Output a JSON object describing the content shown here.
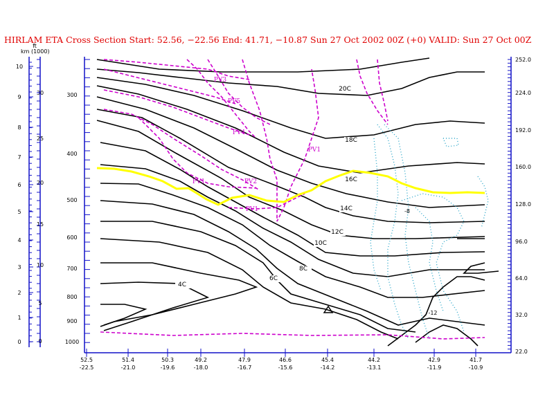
{
  "title": "HIRLAM ETA Cross Section Start:  52.56, −22.56 End:  41.71, −10.87 Sun 27 Oct 2002 00Z  (+0) VALID: Sun 27 Oct 00Z",
  "colors": {
    "title": "#e00000",
    "axis_blue": "#1010c8",
    "isotherm": "#000000",
    "pv": "#cc00cc",
    "tropopause": "#ffff00",
    "humidity": "#2aa6c8"
  },
  "chart_data": {
    "type": "cross-section",
    "left_axis": {
      "unit_km": "km",
      "unit_ft": "ft",
      "unit_ft_scale": "(1000)",
      "km_ticks": [
        "10",
        "9",
        "8",
        "7",
        "6",
        "5",
        "4",
        "3",
        "2",
        "1",
        "0"
      ],
      "ft_ticks": [
        "30",
        "25",
        "20",
        "15",
        "10",
        "5",
        "0"
      ],
      "pressure_ticks": [
        "300",
        "400",
        "500",
        "600",
        "700",
        "800",
        "900",
        "1000"
      ]
    },
    "right_axis": {
      "ticks": [
        "252.0",
        "224.0",
        "192.0",
        "160.0",
        "128.0",
        "96.0",
        "64.0",
        "32.0",
        "22.0"
      ]
    },
    "x_axis": {
      "lat_ticks": [
        "52.5",
        "51.4",
        "50.3",
        "49.2",
        "47.9",
        "46.6",
        "45.4",
        "44.2",
        "42.9",
        "41.7"
      ],
      "lon_ticks": [
        "-22.5",
        "-21.0",
        "-19.6",
        "-18.0",
        "-16.7",
        "-15.6",
        "-14.2",
        "-13.1",
        "-11.9",
        "-10.9"
      ]
    },
    "isotherm_labels": [
      "20C",
      "18C",
      "16C",
      "14C",
      "12C",
      "10C",
      "8C",
      "6C",
      "4C"
    ],
    "pv_labels": [
      "PV3",
      "PV5",
      "PV4",
      "PV1",
      "PV1",
      "PV2",
      "PV1"
    ],
    "humidity_labels": [
      "-8",
      "-12"
    ]
  }
}
